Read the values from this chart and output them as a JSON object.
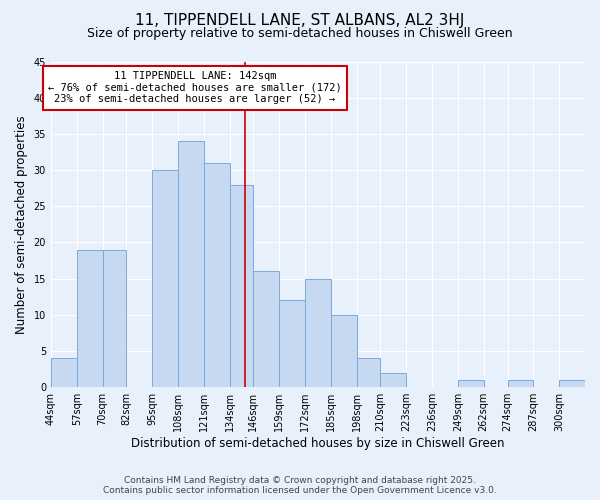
{
  "title": "11, TIPPENDELL LANE, ST ALBANS, AL2 3HJ",
  "subtitle": "Size of property relative to semi-detached houses in Chiswell Green",
  "xlabel": "Distribution of semi-detached houses by size in Chiswell Green",
  "ylabel": "Number of semi-detached properties",
  "bin_labels": [
    "44sqm",
    "57sqm",
    "70sqm",
    "82sqm",
    "95sqm",
    "108sqm",
    "121sqm",
    "134sqm",
    "146sqm",
    "159sqm",
    "172sqm",
    "185sqm",
    "198sqm",
    "210sqm",
    "223sqm",
    "236sqm",
    "249sqm",
    "262sqm",
    "274sqm",
    "287sqm",
    "300sqm"
  ],
  "bin_edges": [
    44,
    57,
    70,
    82,
    95,
    108,
    121,
    134,
    146,
    159,
    172,
    185,
    198,
    210,
    223,
    236,
    249,
    262,
    274,
    287,
    300
  ],
  "bar_heights": [
    4,
    19,
    19,
    0,
    30,
    34,
    31,
    28,
    16,
    12,
    15,
    10,
    4,
    2,
    0,
    0,
    1,
    0,
    1,
    0,
    1
  ],
  "bar_color": "#c6d9f1",
  "bar_edge_color": "#7aaadc",
  "background_color": "#e8f0fb",
  "grid_color": "#ffffff",
  "vline_x": 142,
  "vline_color": "#cc0000",
  "annotation_title": "11 TIPPENDELL LANE: 142sqm",
  "annotation_line1": "← 76% of semi-detached houses are smaller (172)",
  "annotation_line2": "23% of semi-detached houses are larger (52) →",
  "annotation_box_color": "#ffffff",
  "annotation_box_edge": "#cc0000",
  "ylim": [
    0,
    45
  ],
  "yticks": [
    0,
    5,
    10,
    15,
    20,
    25,
    30,
    35,
    40,
    45
  ],
  "footer1": "Contains HM Land Registry data © Crown copyright and database right 2025.",
  "footer2": "Contains public sector information licensed under the Open Government Licence v3.0.",
  "title_fontsize": 11,
  "subtitle_fontsize": 9,
  "axis_label_fontsize": 8.5,
  "tick_fontsize": 7,
  "annot_fontsize": 7.5,
  "footer_fontsize": 6.5
}
